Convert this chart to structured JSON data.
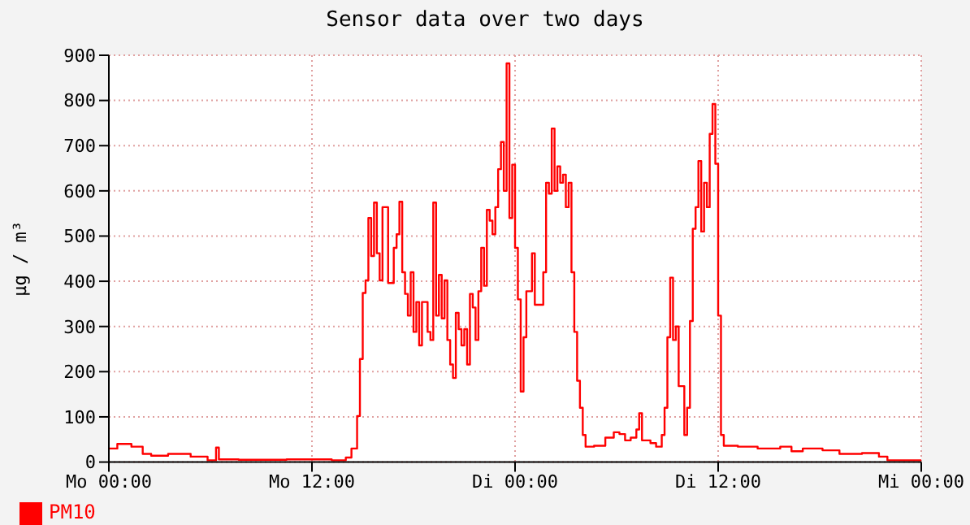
{
  "chart_data": {
    "type": "step",
    "title": "Sensor data over two days",
    "ylabel": "µg / m³",
    "categories": [
      "Mo 00:00",
      null,
      null,
      null,
      null,
      null,
      null,
      null,
      null,
      null,
      null,
      null,
      null,
      null,
      null,
      null,
      null,
      null,
      null,
      null,
      null,
      null,
      null,
      null,
      null,
      null,
      null,
      null,
      null,
      null,
      null,
      null,
      null,
      null,
      null,
      null,
      null,
      null,
      null,
      null,
      null,
      null,
      null,
      null,
      null,
      null,
      null,
      null,
      null,
      null,
      null,
      null,
      null,
      null,
      null,
      null,
      null,
      null,
      null,
      null,
      null,
      null,
      null,
      null,
      null,
      null,
      null,
      null,
      null,
      null,
      null,
      null,
      "Mo 12:00",
      null,
      null,
      null,
      null,
      null,
      null,
      null,
      null,
      null,
      null,
      null,
      null,
      null,
      null,
      null,
      null,
      null,
      null,
      null,
      null,
      null,
      null,
      null,
      null,
      null,
      null,
      null,
      null,
      null,
      null,
      null,
      null,
      null,
      null,
      null,
      null,
      null,
      null,
      null,
      null,
      null,
      null,
      null,
      null,
      null,
      null,
      null,
      null,
      null,
      null,
      null,
      null,
      null,
      null,
      null,
      null,
      null,
      null,
      null,
      null,
      null,
      null,
      null,
      null,
      null,
      null,
      null,
      null,
      null,
      null,
      null,
      "Di 00:00",
      null,
      null,
      null,
      null,
      null,
      null,
      null,
      null,
      null,
      null,
      null,
      null,
      null,
      null,
      null,
      null,
      null,
      null,
      null,
      null,
      null,
      null,
      null,
      null,
      null,
      null,
      null,
      null,
      null,
      null,
      null,
      null,
      null,
      null,
      null,
      null,
      null,
      null,
      null,
      null,
      null,
      null,
      null,
      null,
      null,
      null,
      null,
      null,
      null,
      null,
      null,
      null,
      null,
      null,
      null,
      null,
      null,
      null,
      null,
      null,
      null,
      null,
      null,
      null,
      null,
      null,
      null,
      null,
      null,
      null,
      null,
      "Di 12:00",
      null,
      null,
      null,
      null,
      null,
      null,
      null,
      null,
      null,
      null,
      null,
      null,
      null,
      null,
      null,
      null,
      null,
      null,
      null,
      null,
      null,
      null,
      null,
      null,
      null,
      null,
      null,
      null,
      null,
      null,
      null,
      null,
      null,
      null,
      null,
      null,
      null,
      null,
      null,
      null,
      null,
      null,
      null,
      null,
      null,
      null,
      null,
      null,
      null,
      null,
      null,
      null,
      null,
      null,
      null,
      null,
      null,
      null,
      null,
      null,
      null,
      null,
      null,
      null,
      null,
      null,
      null,
      null,
      null,
      null,
      null,
      "Mi 00:00"
    ],
    "ylim": [
      0,
      900
    ],
    "yticks": [
      0,
      100,
      200,
      300,
      400,
      500,
      600,
      700,
      800,
      900
    ],
    "grid": true,
    "legend": "bottom left",
    "series": [
      {
        "name": "PM10",
        "color": "#ff0000",
        "values": [
          30,
          30,
          30,
          40,
          40,
          40,
          40,
          40,
          34,
          34,
          34,
          34,
          18,
          18,
          18,
          14,
          14,
          14,
          14,
          14,
          14,
          18,
          18,
          18,
          18,
          18,
          18,
          18,
          18,
          12,
          12,
          12,
          12,
          12,
          12,
          4,
          4,
          4,
          32,
          6,
          6,
          6,
          6,
          6,
          6,
          6,
          5,
          5,
          5,
          5,
          5,
          5,
          5,
          5,
          5,
          5,
          5,
          5,
          5,
          5,
          5,
          5,
          5,
          6,
          6,
          6,
          6,
          6,
          6,
          6,
          6,
          6,
          6,
          6,
          6,
          6,
          6,
          6,
          6,
          4,
          4,
          4,
          4,
          4,
          10,
          10,
          30,
          30,
          102,
          228,
          374,
          402,
          540,
          456,
          574,
          462,
          402,
          564,
          564,
          396,
          396,
          474,
          504,
          576,
          420,
          372,
          324,
          420,
          288,
          354,
          258,
          354,
          354,
          288,
          270,
          574,
          324,
          414,
          318,
          402,
          270,
          216,
          186,
          330,
          294,
          258,
          294,
          216,
          372,
          342,
          270,
          378,
          474,
          390,
          558,
          534,
          504,
          564,
          648,
          708,
          600,
          882,
          540,
          658,
          474,
          360,
          156,
          276,
          378,
          378,
          462,
          348,
          348,
          348,
          420,
          618,
          594,
          738,
          600,
          654,
          618,
          636,
          564,
          618,
          420,
          288,
          180,
          120,
          60,
          34,
          34,
          34,
          36,
          36,
          36,
          36,
          54,
          54,
          54,
          66,
          66,
          62,
          62,
          48,
          48,
          54,
          54,
          72,
          108,
          48,
          48,
          48,
          42,
          42,
          34,
          34,
          60,
          120,
          276,
          408,
          270,
          300,
          168,
          168,
          60,
          120,
          312,
          516,
          564,
          666,
          510,
          618,
          564,
          726,
          792,
          660,
          324,
          60,
          36,
          36,
          36,
          36,
          36,
          34,
          34,
          34,
          34,
          34,
          34,
          34,
          30,
          30,
          30,
          30,
          30,
          30,
          30,
          30,
          34,
          34,
          34,
          34,
          24,
          24,
          24,
          24,
          30,
          30,
          30,
          30,
          30,
          30,
          30,
          26,
          26,
          26,
          26,
          26,
          26,
          18,
          18,
          18,
          18,
          18,
          18,
          18,
          18,
          20,
          20,
          20,
          20,
          20,
          20,
          12,
          12,
          12,
          4,
          4,
          4,
          4,
          4,
          4,
          4,
          4,
          4,
          4,
          4,
          4,
          4
        ]
      }
    ]
  }
}
